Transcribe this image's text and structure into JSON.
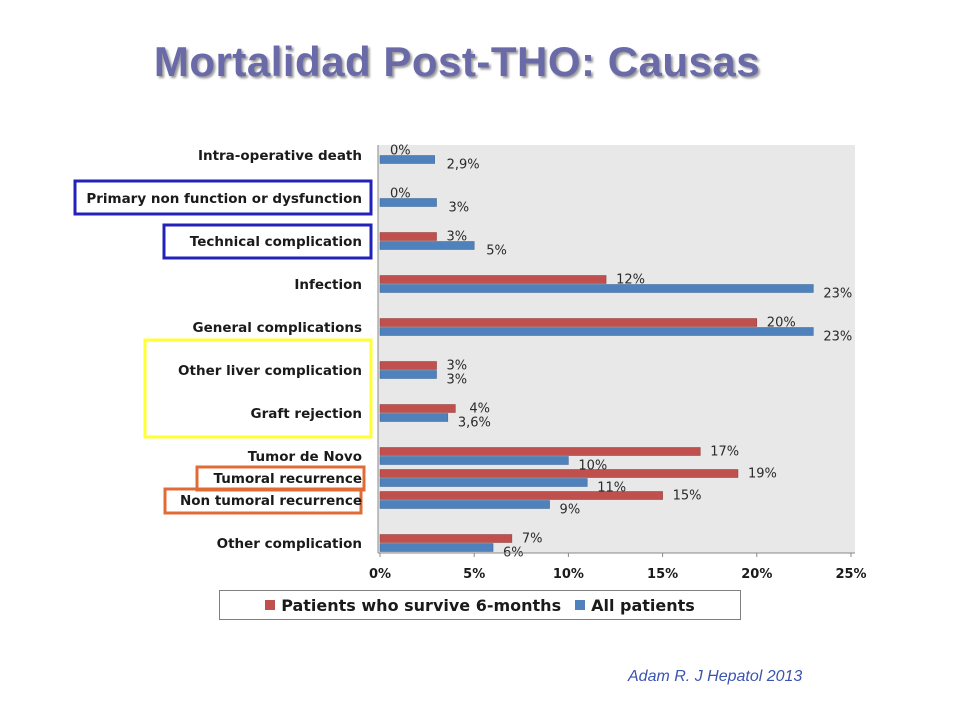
{
  "title": "Mortalidad Post-THO: Causas",
  "citation": "Adam R. J Hepatol 2013",
  "colors": {
    "survivors": "#c0504d",
    "all": "#4f81bd",
    "plot_bg": "#e8e8e8",
    "highlight_blue": "#2222b8",
    "highlight_yellow": "#ffff33",
    "highlight_orange": "#e06b35"
  },
  "chart_data": {
    "type": "bar",
    "orientation": "horizontal",
    "categories": [
      "Intra-operative death",
      "Primary non function or dysfunction",
      "Technical complication",
      "Infection",
      "General complications",
      "Other liver complication",
      "Graft rejection",
      "Tumor de Novo",
      "Tumoral recurrence",
      "Non tumoral recurrence",
      "Other complication"
    ],
    "series": [
      {
        "name": "Patients who survive 6-months",
        "values": [
          0,
          0,
          3,
          12,
          20,
          3,
          4,
          17,
          19,
          15,
          7
        ],
        "labels": [
          "0%",
          "0%",
          "3%",
          "12%",
          "20%",
          "3%",
          "4%",
          "17%",
          "19%",
          "15%",
          "7%"
        ]
      },
      {
        "name": "All patients",
        "values": [
          2.9,
          3,
          5,
          23,
          23,
          3,
          3.6,
          10,
          11,
          9,
          6
        ],
        "labels": [
          "2,9%",
          "3%",
          "5%",
          "23%",
          "23%",
          "3%",
          "3,6%",
          "10%",
          "11%",
          "9%",
          "6%"
        ]
      }
    ],
    "xlim": [
      0,
      25
    ],
    "xticks": [
      "0%",
      "5%",
      "10%",
      "15%",
      "20%",
      "25%"
    ],
    "xtick_values": [
      0,
      5,
      10,
      15,
      20,
      25
    ],
    "grid": false,
    "legend_position": "bottom",
    "highlights": [
      {
        "categories": [
          "Primary non function or dysfunction",
          "Technical complication"
        ],
        "color": "blue"
      },
      {
        "categories": [
          "Other liver complication",
          "Graft rejection"
        ],
        "color": "yellow"
      },
      {
        "categories": [
          "Tumoral recurrence",
          "Non tumoral recurrence"
        ],
        "color": "orange"
      }
    ]
  }
}
